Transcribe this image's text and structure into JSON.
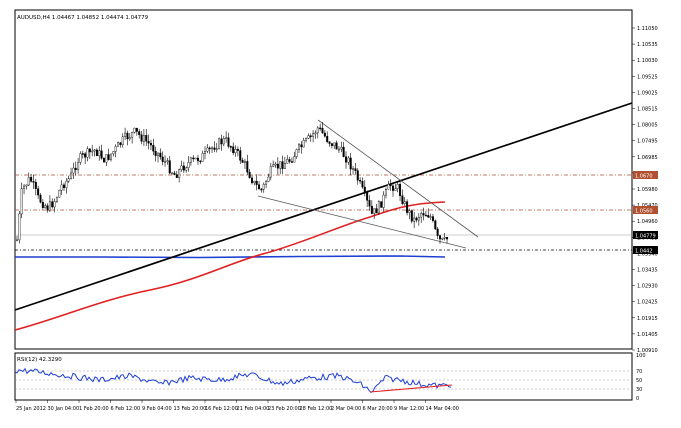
{
  "main_chart": {
    "title": "AUDUSD,H4  1.04467 1.04852 1.04474 1.04779",
    "price_labels": [
      "1.11050",
      "1.10535",
      "1.10030",
      "1.09525",
      "1.09025",
      "1.08515",
      "1.08005",
      "1.07495",
      "1.06985",
      "1.06490",
      "1.05980",
      "1.05470",
      "1.04960",
      "1.04455",
      "1.03940",
      "1.03435",
      "1.02930",
      "1.02425",
      "1.01915",
      "1.01405",
      "1.00910"
    ],
    "tags": {
      "level_a": "1.0670",
      "level_b": "1.0560",
      "current": "1.04779",
      "level_c": "1.0442"
    },
    "colors": {
      "candles": "#000000",
      "ma_red": "#e02020",
      "ma_blue": "#1f3fd0",
      "trend_black": "#000000",
      "trend_grey": "#555555",
      "level_lines": "#b05030",
      "support_line": "#000000"
    }
  },
  "rsi": {
    "title": "RSI(12) 42.3290",
    "levels": [
      "100",
      "70",
      "50",
      "30",
      "0"
    ],
    "colors": {
      "line": "#1f3fd0",
      "trend": "#e02020"
    }
  },
  "time_labels": [
    "25 Jan 2012",
    "30 Jan 04:00",
    "1 Feb 20:00",
    "6 Feb 12:00",
    "9 Feb 04:00",
    "13 Feb 20:00",
    "16 Feb 12:00",
    "21 Feb 04:00",
    "23 Feb 20:00",
    "28 Feb 12:00",
    "2 Mar 04:00",
    "6 Mar 20:00",
    "9 Mar 12:00",
    "14 Mar 04:00"
  ]
}
